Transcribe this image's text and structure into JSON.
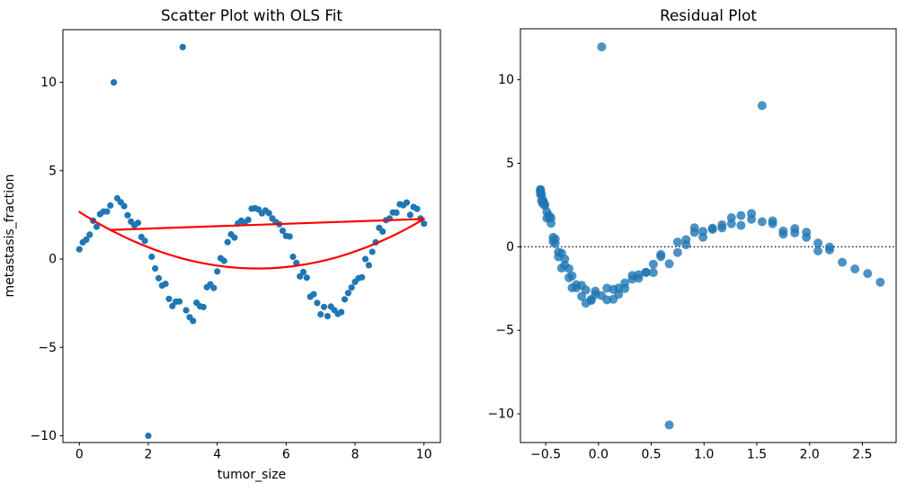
{
  "figure": {
    "background": "#ffffff",
    "scatter_color": "#1f77b4",
    "fit_line_color": "#ff0000",
    "zero_line_color": "#000000",
    "axis_color": "#000000"
  },
  "chart_data": [
    {
      "type": "scatter",
      "title": "Scatter Plot with OLS Fit",
      "xlabel": "tumor_size",
      "ylabel": "metastasis_fraction",
      "xlim": [
        -0.477,
        10.477
      ],
      "ylim": [
        -10.38,
        12.98
      ],
      "grid": false,
      "xticks": {
        "positions": [
          0,
          2,
          4,
          6,
          8,
          10
        ],
        "labels": [
          "0",
          "2",
          "4",
          "6",
          "8",
          "10"
        ]
      },
      "yticks": {
        "positions": [
          -10,
          -5,
          0,
          5,
          10
        ],
        "labels": [
          "−10",
          "−5",
          "0",
          "5",
          "10"
        ]
      },
      "marker": {
        "radius": 3.6,
        "opacity": 1.0
      },
      "fit_curve": {
        "comment": "OLS quadratic fit y = a*x^2 + b*x + c drawn in red",
        "coeffs_abc": [
          0.12,
          -1.24,
          2.67
        ],
        "x_range": [
          0,
          10
        ]
      },
      "fit_chord": {
        "from": [
          0.9,
          1.65
        ],
        "to": [
          10.0,
          2.27
        ]
      },
      "points": [
        [
          0.0,
          0.55
        ],
        [
          0.1,
          0.95
        ],
        [
          0.2,
          1.1
        ],
        [
          0.3,
          1.38
        ],
        [
          0.4,
          2.17
        ],
        [
          0.5,
          1.83
        ],
        [
          0.6,
          2.54
        ],
        [
          0.7,
          2.69
        ],
        [
          0.8,
          2.69
        ],
        [
          0.9,
          3.03
        ],
        [
          1.0,
          10.0
        ],
        [
          1.1,
          3.44
        ],
        [
          1.2,
          3.22
        ],
        [
          1.3,
          3.0
        ],
        [
          1.4,
          2.48
        ],
        [
          1.5,
          2.12
        ],
        [
          1.6,
          1.91
        ],
        [
          1.7,
          2.05
        ],
        [
          1.8,
          1.25
        ],
        [
          1.9,
          1.03
        ],
        [
          2.0,
          -10.0
        ],
        [
          2.1,
          0.13
        ],
        [
          2.2,
          -0.53
        ],
        [
          2.3,
          -1.08
        ],
        [
          2.4,
          -1.5
        ],
        [
          2.5,
          -1.4
        ],
        [
          2.6,
          -2.25
        ],
        [
          2.7,
          -2.66
        ],
        [
          2.8,
          -2.41
        ],
        [
          2.9,
          -2.4
        ],
        [
          3.0,
          12.0
        ],
        [
          3.1,
          -2.9
        ],
        [
          3.2,
          -3.29
        ],
        [
          3.3,
          -3.5
        ],
        [
          3.4,
          -2.47
        ],
        [
          3.5,
          -2.67
        ],
        [
          3.6,
          -2.71
        ],
        [
          3.7,
          -1.59
        ],
        [
          3.8,
          -1.43
        ],
        [
          3.9,
          -1.63
        ],
        [
          4.0,
          -0.7
        ],
        [
          4.1,
          0.05
        ],
        [
          4.2,
          -0.1
        ],
        [
          4.3,
          0.96
        ],
        [
          4.4,
          1.4
        ],
        [
          4.5,
          1.22
        ],
        [
          4.6,
          2.02
        ],
        [
          4.7,
          2.17
        ],
        [
          4.8,
          2.07
        ],
        [
          4.9,
          2.22
        ],
        [
          5.0,
          2.85
        ],
        [
          5.1,
          2.88
        ],
        [
          5.2,
          2.8
        ],
        [
          5.3,
          2.59
        ],
        [
          5.4,
          2.75
        ],
        [
          5.5,
          2.6
        ],
        [
          5.6,
          2.3
        ],
        [
          5.7,
          2.1
        ],
        [
          5.8,
          1.97
        ],
        [
          5.9,
          1.6
        ],
        [
          6.0,
          1.31
        ],
        [
          6.1,
          1.28
        ],
        [
          6.2,
          0.13
        ],
        [
          6.3,
          -0.22
        ],
        [
          6.4,
          -0.98
        ],
        [
          6.5,
          -0.73
        ],
        [
          6.6,
          -1.05
        ],
        [
          6.7,
          -2.13
        ],
        [
          6.8,
          -1.99
        ],
        [
          6.9,
          -2.48
        ],
        [
          7.0,
          -3.13
        ],
        [
          7.1,
          -2.71
        ],
        [
          7.2,
          -3.23
        ],
        [
          7.3,
          -2.69
        ],
        [
          7.4,
          -2.89
        ],
        [
          7.5,
          -3.1
        ],
        [
          7.6,
          -3.0
        ],
        [
          7.7,
          -2.28
        ],
        [
          7.8,
          -1.92
        ],
        [
          7.9,
          -1.61
        ],
        [
          8.0,
          -1.29
        ],
        [
          8.1,
          -1.08
        ],
        [
          8.2,
          -1.03
        ],
        [
          8.3,
          0.0
        ],
        [
          8.4,
          -0.35
        ],
        [
          8.5,
          0.41
        ],
        [
          8.6,
          0.95
        ],
        [
          8.7,
          1.77
        ],
        [
          8.8,
          1.56
        ],
        [
          8.9,
          2.2
        ],
        [
          9.0,
          2.3
        ],
        [
          9.1,
          2.64
        ],
        [
          9.2,
          2.63
        ],
        [
          9.3,
          3.1
        ],
        [
          9.4,
          3.05
        ],
        [
          9.5,
          3.2
        ],
        [
          9.6,
          2.5
        ],
        [
          9.7,
          2.95
        ],
        [
          9.8,
          2.84
        ],
        [
          9.9,
          2.3
        ],
        [
          10.0,
          2.0
        ]
      ]
    },
    {
      "type": "scatter",
      "title": "Residual Plot",
      "xlabel": "",
      "ylabel": "",
      "xlim": [
        -0.74,
        2.82
      ],
      "ylim": [
        -11.72,
        13.05
      ],
      "grid": false,
      "xticks": {
        "positions": [
          -0.5,
          0.0,
          0.5,
          1.0,
          1.5,
          2.0,
          2.5
        ],
        "labels": [
          "−0.5",
          "0.0",
          "0.5",
          "1.0",
          "1.5",
          "2.0",
          "2.5"
        ]
      },
      "yticks": {
        "positions": [
          -10,
          -5,
          0,
          5,
          10
        ],
        "labels": [
          "−10",
          "−5",
          "0",
          "5",
          "10"
        ]
      },
      "marker": {
        "radius": 5.0,
        "opacity": 0.8
      },
      "zero_line": {
        "y": 0,
        "style": "dotted"
      },
      "points": [
        [
          2.67,
          -2.12
        ],
        [
          2.55,
          -1.6
        ],
        [
          2.43,
          -1.33
        ],
        [
          2.31,
          -0.93
        ],
        [
          2.19,
          -0.02
        ],
        [
          2.08,
          -0.25
        ],
        [
          1.97,
          0.57
        ],
        [
          1.86,
          0.83
        ],
        [
          1.75,
          0.94
        ],
        [
          1.65,
          1.38
        ],
        [
          1.55,
          8.45
        ],
        [
          1.45,
          1.99
        ],
        [
          1.35,
          1.87
        ],
        [
          1.26,
          1.74
        ],
        [
          1.17,
          1.31
        ],
        [
          1.08,
          1.04
        ],
        [
          0.99,
          0.92
        ],
        [
          0.91,
          1.14
        ],
        [
          0.83,
          0.42
        ],
        [
          0.75,
          0.28
        ],
        [
          0.67,
          -10.67
        ],
        [
          0.59,
          -0.46
        ],
        [
          0.52,
          -1.05
        ],
        [
          0.45,
          -1.53
        ],
        [
          0.38,
          -1.88
        ],
        [
          0.32,
          -1.72
        ],
        [
          0.25,
          -2.5
        ],
        [
          0.19,
          -2.85
        ],
        [
          0.14,
          -2.55
        ],
        [
          0.08,
          -2.48
        ],
        [
          0.03,
          11.97
        ],
        [
          -0.03,
          -2.87
        ],
        [
          -0.07,
          -3.22
        ],
        [
          -0.12,
          -3.38
        ],
        [
          -0.16,
          -2.31
        ],
        [
          -0.21,
          -2.46
        ],
        [
          -0.25,
          -2.46
        ],
        [
          -0.28,
          -1.31
        ],
        [
          -0.32,
          -1.11
        ],
        [
          -0.35,
          -1.28
        ],
        [
          -0.38,
          -0.32
        ],
        [
          -0.41,
          0.46
        ],
        [
          -0.43,
          0.33
        ],
        [
          -0.45,
          1.41
        ],
        [
          -0.47,
          1.87
        ],
        [
          -0.49,
          1.71
        ],
        [
          -0.51,
          2.53
        ],
        [
          -0.52,
          2.69
        ],
        [
          -0.53,
          2.6
        ],
        [
          -0.54,
          2.76
        ],
        [
          -0.55,
          3.4
        ],
        [
          -0.55,
          3.43
        ],
        [
          -0.55,
          3.35
        ],
        [
          -0.55,
          3.14
        ],
        [
          -0.55,
          3.3
        ],
        [
          -0.54,
          3.14
        ],
        [
          -0.53,
          2.83
        ],
        [
          -0.52,
          2.62
        ],
        [
          -0.51,
          2.48
        ],
        [
          -0.49,
          2.09
        ],
        [
          -0.47,
          1.78
        ],
        [
          -0.45,
          1.73
        ],
        [
          -0.43,
          0.56
        ],
        [
          -0.41,
          0.19
        ],
        [
          -0.38,
          -0.6
        ],
        [
          -0.35,
          -0.38
        ],
        [
          -0.32,
          -0.73
        ],
        [
          -0.28,
          -1.85
        ],
        [
          -0.25,
          -1.74
        ],
        [
          -0.21,
          -2.27
        ],
        [
          -0.16,
          -2.97
        ],
        [
          -0.12,
          -2.59
        ],
        [
          -0.07,
          -3.16
        ],
        [
          -0.03,
          -2.66
        ],
        [
          0.03,
          -2.92
        ],
        [
          0.08,
          -3.18
        ],
        [
          0.14,
          -3.14
        ],
        [
          0.19,
          -2.47
        ],
        [
          0.25,
          -2.17
        ],
        [
          0.32,
          -1.93
        ],
        [
          0.38,
          -1.67
        ],
        [
          0.45,
          -1.53
        ],
        [
          0.52,
          -1.55
        ],
        [
          0.59,
          -0.59
        ],
        [
          0.67,
          -1.02
        ],
        [
          0.75,
          -0.34
        ],
        [
          0.83,
          0.12
        ],
        [
          0.91,
          0.86
        ],
        [
          0.99,
          0.57
        ],
        [
          1.08,
          1.12
        ],
        [
          1.17,
          1.13
        ],
        [
          1.26,
          1.38
        ],
        [
          1.35,
          1.28
        ],
        [
          1.45,
          1.65
        ],
        [
          1.55,
          1.5
        ],
        [
          1.65,
          1.55
        ],
        [
          1.75,
          0.75
        ],
        [
          1.86,
          1.09
        ],
        [
          1.97,
          0.87
        ],
        [
          2.08,
          0.22
        ],
        [
          2.19,
          -0.19
        ]
      ]
    }
  ]
}
